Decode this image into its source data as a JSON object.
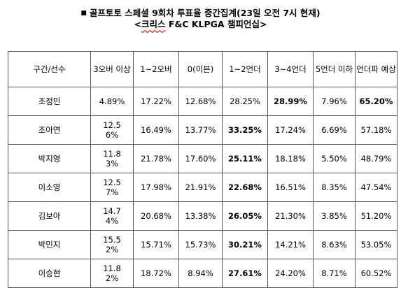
{
  "title": {
    "bullet": "■",
    "line1": "골프토토 스페셜 9회차 투표율 중간집계(23일 오전 7시 현재)",
    "line2_prefix": "<",
    "line2_squiggle": "크리스",
    "line2_rest": " F&C KLPGA 챔피언십>"
  },
  "table": {
    "headers": [
      "구간/선수",
      "3오버 이상",
      "1~2오버",
      "0(이븐)",
      "1~2언더",
      "3~4언더",
      "5언더 이하",
      "언더파 예상"
    ],
    "rows": [
      {
        "name": "조정민",
        "cells": [
          "4.89%",
          "17.22%",
          "12.68%",
          "28.25%",
          "28.99%",
          "7.96%",
          "65.20%"
        ],
        "bold": [
          4,
          6
        ]
      },
      {
        "name": "조아연",
        "cells": [
          "12.56%",
          "16.49%",
          "13.77%",
          "33.25%",
          "17.24%",
          "6.69%",
          "57.18%"
        ],
        "bold": [
          3
        ]
      },
      {
        "name": "박지영",
        "cells": [
          "11.83%",
          "21.78%",
          "17.60%",
          "25.11%",
          "18.18%",
          "5.50%",
          "48.79%"
        ],
        "bold": [
          3
        ]
      },
      {
        "name": "이소영",
        "cells": [
          "12.57%",
          "17.98%",
          "21.91%",
          "22.68%",
          "16.51%",
          "8.35%",
          "47.54%"
        ],
        "bold": [
          3
        ]
      },
      {
        "name": "김보아",
        "cells": [
          "14.74%",
          "20.68%",
          "13.38%",
          "26.05%",
          "21.30%",
          "3.85%",
          "51.20%"
        ],
        "bold": [
          3
        ]
      },
      {
        "name": "박민지",
        "cells": [
          "15.52%",
          "15.71%",
          "15.73%",
          "30.21%",
          "14.21%",
          "8.63%",
          "53.05%"
        ],
        "bold": [
          3
        ]
      },
      {
        "name": "이승현",
        "cells": [
          "11.82%",
          "18.72%",
          "8.94%",
          "27.61%",
          "24.20%",
          "8.71%",
          "60.52%"
        ],
        "bold": [
          3
        ]
      }
    ]
  }
}
